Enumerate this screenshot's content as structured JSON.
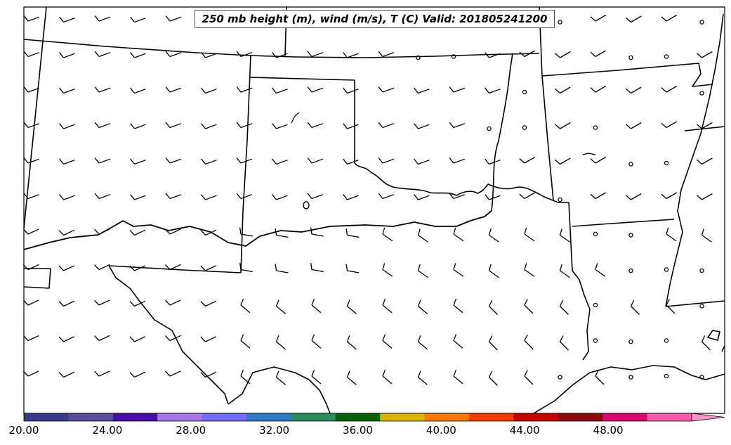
{
  "title": "250 mb height (m), wind (m/s), T (C) Valid: 201805241200",
  "colorbar": {
    "tick_labels": [
      "20.00",
      "24.00",
      "28.00",
      "32.00",
      "36.00",
      "40.00",
      "44.00",
      "48.00"
    ],
    "tick_values": [
      20,
      24,
      28,
      32,
      36,
      40,
      44,
      48
    ],
    "min": 20,
    "max": 52,
    "step": 2,
    "extend": "max",
    "colors": [
      "#3a3a8c",
      "#5a4e9c",
      "#4a0ca8",
      "#a874ea",
      "#6e6efa",
      "#2e7ac8",
      "#2e8c5a",
      "#056405",
      "#dcb400",
      "#fa7800",
      "#f03c00",
      "#c80000",
      "#8c0a0a",
      "#dc0a6e",
      "#fa5aaa"
    ],
    "extend_color": "#fa96c8"
  },
  "colors": {
    "lines": "#000000",
    "background": "#ffffff"
  }
}
